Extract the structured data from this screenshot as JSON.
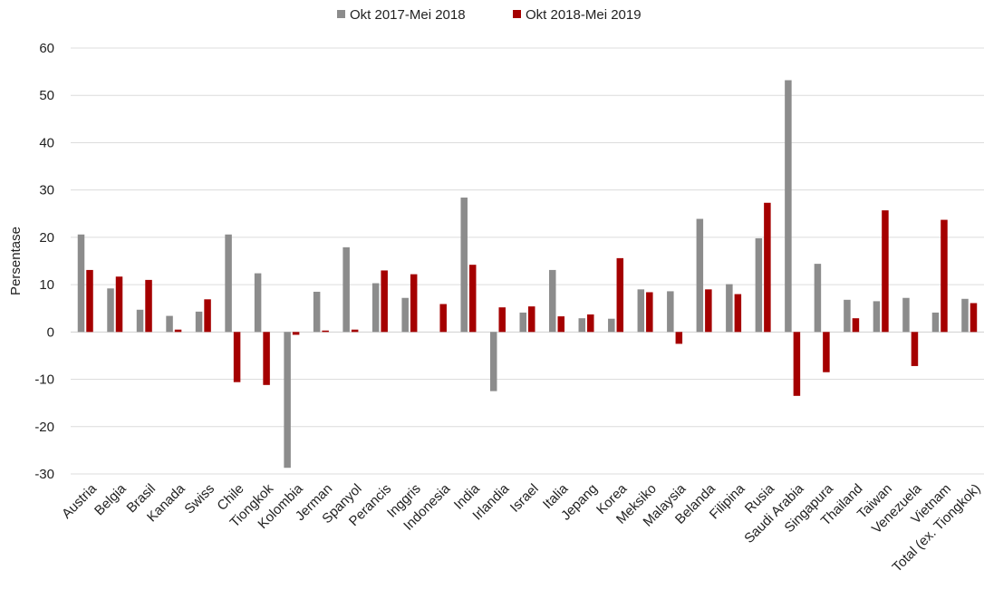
{
  "chart_data": {
    "type": "bar",
    "title": "",
    "xlabel": "",
    "ylabel": "Persentase",
    "ylim": [
      -30,
      60
    ],
    "yticks": [
      -30,
      -20,
      -10,
      0,
      10,
      20,
      30,
      40,
      50,
      60
    ],
    "grid": true,
    "legend_position": "top-center",
    "categories": [
      "Austria",
      "Belgia",
      "Brasil",
      "Kanada",
      "Swiss",
      "Chile",
      "Tiongkok",
      "Kolombia",
      "Jerman",
      "Spanyol",
      "Perancis",
      "Inggris",
      "Indonesia",
      "India",
      "Irlandia",
      "Israel",
      "Italia",
      "Jepang",
      "Korea",
      "Meksiko",
      "Malaysia",
      "Belanda",
      "Filipina",
      "Rusia",
      "Saudi Arabia",
      "Singapura",
      "Thailand",
      "Taiwan",
      "Venezuela",
      "Vietnam",
      "Total (ex. Tiongkok)"
    ],
    "series": [
      {
        "name": "Okt 2017-Mei 2018",
        "color": "#8c8c8c",
        "values": [
          20.6,
          9.2,
          4.7,
          3.4,
          4.3,
          20.6,
          12.4,
          -28.7,
          8.5,
          17.9,
          10.3,
          7.2,
          0,
          28.4,
          -12.5,
          4.1,
          13.1,
          2.9,
          2.8,
          9.0,
          8.6,
          23.9,
          10.1,
          19.8,
          53.2,
          14.4,
          6.8,
          6.5,
          7.2,
          4.1,
          7.0
        ]
      },
      {
        "name": "Okt 2018-Mei 2019",
        "color": "#a50000",
        "values": [
          13.1,
          11.7,
          11.0,
          0.5,
          6.9,
          -10.6,
          -11.2,
          -0.6,
          0.3,
          0.5,
          13.0,
          12.2,
          5.9,
          14.2,
          5.2,
          5.4,
          3.3,
          3.7,
          15.6,
          8.4,
          -2.5,
          9.0,
          8.0,
          27.3,
          -13.5,
          -8.5,
          2.9,
          25.7,
          -7.2,
          23.7,
          6.1
        ]
      }
    ]
  }
}
